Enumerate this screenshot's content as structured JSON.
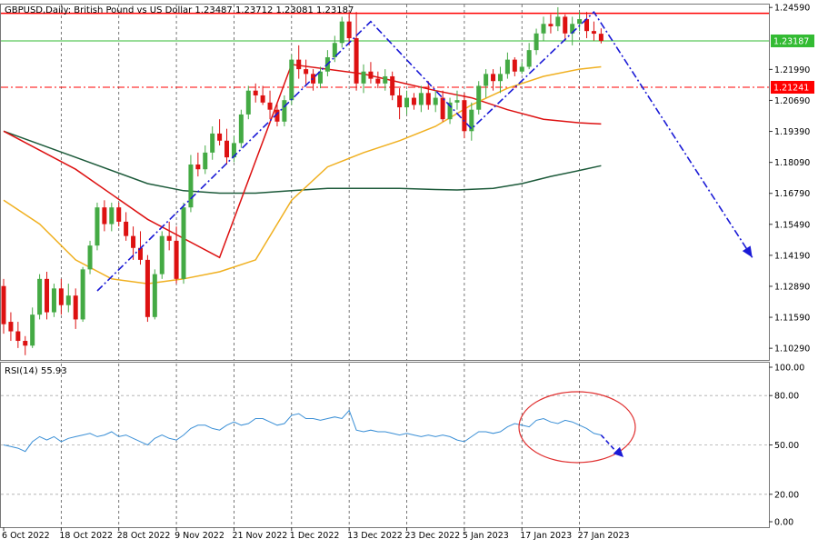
{
  "header": {
    "symbol_line": "GBPUSD,Daily:  British Pound vs US Dollar  1.23487 1.23712 1.23081 1.23187"
  },
  "colors": {
    "bull": "#44aa44",
    "bear": "#dd1111",
    "ma_red": "#dd1111",
    "ma_orange": "#f0b020",
    "ma_dark": "#1c5a3a",
    "pattern_line": "#1a1ad6",
    "hline_red": "#ff0000",
    "hline_green": "#33bb33",
    "rsi_line": "#3a8fd6",
    "circle": "#e03030",
    "grid": "#555555"
  },
  "chart_data": [
    {
      "type": "candlestick",
      "title": "GBPUSD,Daily:  British Pound vs US Dollar  1.23487 1.23712 1.23081 1.23187",
      "ylim": [
        1.098,
        1.2475
      ],
      "y_ticks": [
        "1.24590",
        "1.23187",
        "1.21990",
        "1.21241",
        "1.20690",
        "1.19390",
        "1.18090",
        "1.16790",
        "1.15490",
        "1.14190",
        "1.12890",
        "1.11590",
        "1.10290"
      ],
      "x_ticks": [
        "6 Oct 2022",
        "18 Oct 2022",
        "28 Oct 2022",
        "9 Nov 2022",
        "21 Nov 2022",
        "1 Dec 2022",
        "13 Dec 2022",
        "23 Dec 2022",
        "5 Jan 2023",
        "17 Jan 2023",
        "27 Jan 2023"
      ],
      "x_tick_bar_index": [
        0,
        8,
        16,
        24,
        32,
        40,
        48,
        56,
        64,
        72,
        80
      ],
      "candles": [
        {
          "o": 1.129,
          "h": 1.132,
          "l": 1.109,
          "c": 1.113
        },
        {
          "o": 1.114,
          "h": 1.118,
          "l": 1.106,
          "c": 1.11
        },
        {
          "o": 1.11,
          "h": 1.114,
          "l": 1.103,
          "c": 1.106
        },
        {
          "o": 1.106,
          "h": 1.108,
          "l": 1.1,
          "c": 1.104
        },
        {
          "o": 1.104,
          "h": 1.12,
          "l": 1.103,
          "c": 1.117
        },
        {
          "o": 1.117,
          "h": 1.134,
          "l": 1.115,
          "c": 1.132
        },
        {
          "o": 1.132,
          "h": 1.135,
          "l": 1.115,
          "c": 1.118
        },
        {
          "o": 1.118,
          "h": 1.13,
          "l": 1.116,
          "c": 1.128
        },
        {
          "o": 1.128,
          "h": 1.132,
          "l": 1.117,
          "c": 1.121
        },
        {
          "o": 1.121,
          "h": 1.13,
          "l": 1.118,
          "c": 1.125
        },
        {
          "o": 1.125,
          "h": 1.128,
          "l": 1.111,
          "c": 1.115
        },
        {
          "o": 1.115,
          "h": 1.137,
          "l": 1.114,
          "c": 1.136
        },
        {
          "o": 1.136,
          "h": 1.148,
          "l": 1.134,
          "c": 1.146
        },
        {
          "o": 1.146,
          "h": 1.164,
          "l": 1.144,
          "c": 1.162
        },
        {
          "o": 1.162,
          "h": 1.165,
          "l": 1.152,
          "c": 1.155
        },
        {
          "o": 1.155,
          "h": 1.164,
          "l": 1.152,
          "c": 1.162
        },
        {
          "o": 1.162,
          "h": 1.164,
          "l": 1.154,
          "c": 1.156
        },
        {
          "o": 1.156,
          "h": 1.16,
          "l": 1.148,
          "c": 1.15
        },
        {
          "o": 1.15,
          "h": 1.154,
          "l": 1.14,
          "c": 1.145
        },
        {
          "o": 1.145,
          "h": 1.152,
          "l": 1.138,
          "c": 1.14
        },
        {
          "o": 1.14,
          "h": 1.142,
          "l": 1.114,
          "c": 1.116
        },
        {
          "o": 1.116,
          "h": 1.136,
          "l": 1.115,
          "c": 1.134
        },
        {
          "o": 1.134,
          "h": 1.152,
          "l": 1.132,
          "c": 1.15
        },
        {
          "o": 1.15,
          "h": 1.156,
          "l": 1.144,
          "c": 1.148
        },
        {
          "o": 1.148,
          "h": 1.154,
          "l": 1.13,
          "c": 1.132
        },
        {
          "o": 1.132,
          "h": 1.164,
          "l": 1.13,
          "c": 1.162
        },
        {
          "o": 1.162,
          "h": 1.184,
          "l": 1.16,
          "c": 1.18
        },
        {
          "o": 1.18,
          "h": 1.185,
          "l": 1.175,
          "c": 1.178
        },
        {
          "o": 1.178,
          "h": 1.188,
          "l": 1.176,
          "c": 1.185
        },
        {
          "o": 1.185,
          "h": 1.196,
          "l": 1.182,
          "c": 1.193
        },
        {
          "o": 1.193,
          "h": 1.199,
          "l": 1.188,
          "c": 1.19
        },
        {
          "o": 1.19,
          "h": 1.195,
          "l": 1.18,
          "c": 1.183
        },
        {
          "o": 1.183,
          "h": 1.192,
          "l": 1.181,
          "c": 1.189
        },
        {
          "o": 1.189,
          "h": 1.203,
          "l": 1.187,
          "c": 1.201
        },
        {
          "o": 1.201,
          "h": 1.213,
          "l": 1.199,
          "c": 1.211
        },
        {
          "o": 1.211,
          "h": 1.214,
          "l": 1.206,
          "c": 1.209
        },
        {
          "o": 1.209,
          "h": 1.213,
          "l": 1.205,
          "c": 1.206
        },
        {
          "o": 1.206,
          "h": 1.211,
          "l": 1.199,
          "c": 1.203
        },
        {
          "o": 1.203,
          "h": 1.206,
          "l": 1.196,
          "c": 1.198
        },
        {
          "o": 1.198,
          "h": 1.209,
          "l": 1.196,
          "c": 1.207
        },
        {
          "o": 1.207,
          "h": 1.226,
          "l": 1.205,
          "c": 1.224
        },
        {
          "o": 1.224,
          "h": 1.23,
          "l": 1.216,
          "c": 1.22
        },
        {
          "o": 1.22,
          "h": 1.224,
          "l": 1.213,
          "c": 1.218
        },
        {
          "o": 1.218,
          "h": 1.22,
          "l": 1.211,
          "c": 1.214
        },
        {
          "o": 1.214,
          "h": 1.221,
          "l": 1.212,
          "c": 1.219
        },
        {
          "o": 1.219,
          "h": 1.228,
          "l": 1.217,
          "c": 1.225
        },
        {
          "o": 1.225,
          "h": 1.234,
          "l": 1.223,
          "c": 1.231
        },
        {
          "o": 1.231,
          "h": 1.242,
          "l": 1.229,
          "c": 1.24
        },
        {
          "o": 1.24,
          "h": 1.244,
          "l": 1.23,
          "c": 1.233
        },
        {
          "o": 1.233,
          "h": 1.244,
          "l": 1.211,
          "c": 1.214
        },
        {
          "o": 1.214,
          "h": 1.222,
          "l": 1.21,
          "c": 1.219
        },
        {
          "o": 1.219,
          "h": 1.223,
          "l": 1.214,
          "c": 1.216
        },
        {
          "o": 1.216,
          "h": 1.219,
          "l": 1.212,
          "c": 1.214
        },
        {
          "o": 1.214,
          "h": 1.22,
          "l": 1.211,
          "c": 1.217
        },
        {
          "o": 1.217,
          "h": 1.219,
          "l": 1.207,
          "c": 1.209
        },
        {
          "o": 1.209,
          "h": 1.212,
          "l": 1.199,
          "c": 1.204
        },
        {
          "o": 1.204,
          "h": 1.211,
          "l": 1.201,
          "c": 1.208
        },
        {
          "o": 1.208,
          "h": 1.21,
          "l": 1.203,
          "c": 1.205
        },
        {
          "o": 1.205,
          "h": 1.213,
          "l": 1.202,
          "c": 1.21
        },
        {
          "o": 1.21,
          "h": 1.215,
          "l": 1.203,
          "c": 1.205
        },
        {
          "o": 1.205,
          "h": 1.211,
          "l": 1.202,
          "c": 1.208
        },
        {
          "o": 1.208,
          "h": 1.211,
          "l": 1.198,
          "c": 1.199
        },
        {
          "o": 1.199,
          "h": 1.208,
          "l": 1.197,
          "c": 1.206
        },
        {
          "o": 1.206,
          "h": 1.211,
          "l": 1.203,
          "c": 1.207
        },
        {
          "o": 1.207,
          "h": 1.21,
          "l": 1.191,
          "c": 1.194
        },
        {
          "o": 1.194,
          "h": 1.206,
          "l": 1.19,
          "c": 1.203
        },
        {
          "o": 1.203,
          "h": 1.215,
          "l": 1.201,
          "c": 1.213
        },
        {
          "o": 1.213,
          "h": 1.22,
          "l": 1.208,
          "c": 1.218
        },
        {
          "o": 1.218,
          "h": 1.22,
          "l": 1.211,
          "c": 1.215
        },
        {
          "o": 1.215,
          "h": 1.221,
          "l": 1.21,
          "c": 1.218
        },
        {
          "o": 1.218,
          "h": 1.227,
          "l": 1.216,
          "c": 1.224
        },
        {
          "o": 1.224,
          "h": 1.225,
          "l": 1.217,
          "c": 1.219
        },
        {
          "o": 1.219,
          "h": 1.223,
          "l": 1.218,
          "c": 1.221
        },
        {
          "o": 1.221,
          "h": 1.231,
          "l": 1.22,
          "c": 1.228
        },
        {
          "o": 1.228,
          "h": 1.237,
          "l": 1.226,
          "c": 1.235
        },
        {
          "o": 1.235,
          "h": 1.242,
          "l": 1.232,
          "c": 1.239
        },
        {
          "o": 1.239,
          "h": 1.243,
          "l": 1.235,
          "c": 1.238
        },
        {
          "o": 1.238,
          "h": 1.246,
          "l": 1.236,
          "c": 1.242
        },
        {
          "o": 1.242,
          "h": 1.243,
          "l": 1.232,
          "c": 1.235
        },
        {
          "o": 1.235,
          "h": 1.242,
          "l": 1.23,
          "c": 1.239
        },
        {
          "o": 1.239,
          "h": 1.244,
          "l": 1.236,
          "c": 1.241
        },
        {
          "o": 1.241,
          "h": 1.244,
          "l": 1.233,
          "c": 1.236
        },
        {
          "o": 1.236,
          "h": 1.24,
          "l": 1.232,
          "c": 1.2349
        },
        {
          "o": 1.23487,
          "h": 1.23712,
          "l": 1.23081,
          "c": 1.23187
        }
      ],
      "ma_red": {
        "bar_index": [
          0,
          10,
          20,
          30,
          40,
          50,
          55,
          60,
          65,
          70,
          75,
          80,
          83
        ],
        "values": [
          1.194,
          1.178,
          1.157,
          1.141,
          1.222,
          1.218,
          1.2145,
          1.211,
          1.208,
          1.203,
          1.199,
          1.1975,
          1.197
        ]
      },
      "ma_orange": {
        "bar_index": [
          0,
          5,
          10,
          15,
          20,
          25,
          30,
          35,
          40,
          45,
          50,
          55,
          60,
          65,
          70,
          75,
          80,
          83
        ],
        "values": [
          1.165,
          1.155,
          1.14,
          1.132,
          1.13,
          1.132,
          1.135,
          1.14,
          1.165,
          1.179,
          1.185,
          1.19,
          1.196,
          1.205,
          1.212,
          1.217,
          1.22,
          1.221
        ]
      },
      "ma_dark": {
        "bar_index": [
          0,
          10,
          20,
          25,
          30,
          35,
          40,
          45,
          50,
          55,
          60,
          63,
          68,
          72,
          76,
          80,
          83
        ],
        "values": [
          1.194,
          1.183,
          1.172,
          1.169,
          1.168,
          1.168,
          1.169,
          1.17,
          1.17,
          1.17,
          1.1695,
          1.1693,
          1.17,
          1.172,
          1.175,
          1.1775,
          1.1795
        ]
      },
      "hlines": [
        {
          "value": 1.24345,
          "label": "1.24345",
          "style": "solid",
          "color": "hline_red"
        },
        {
          "value": 1.23187,
          "label": "1.23187",
          "style": "solid",
          "color": "hline_green"
        },
        {
          "value": 1.21241,
          "label": "1.21241",
          "style": "dashdot",
          "color": "hline_red"
        }
      ],
      "pattern_path": {
        "bar_index": [
          13,
          51,
          65,
          82,
          104
        ],
        "values": [
          1.127,
          1.24,
          1.195,
          1.244,
          1.141
        ]
      }
    },
    {
      "type": "line",
      "title": "RSI(14) 55.93",
      "ylim": [
        0,
        100
      ],
      "y_ticks": [
        "100.00",
        "80.00",
        "50.00",
        "20.00",
        "0.00"
      ],
      "levels": [
        80,
        50,
        20
      ],
      "values": [
        50,
        49,
        48,
        46,
        52,
        55,
        53,
        55,
        52,
        54,
        55,
        56,
        57,
        55,
        56,
        58,
        55,
        56,
        54,
        52,
        50,
        54,
        56,
        54,
        53,
        56,
        60,
        62,
        62,
        60,
        59,
        62,
        64,
        62,
        63,
        66,
        66,
        64,
        62,
        63,
        68,
        69,
        66,
        66,
        65,
        66,
        67,
        66,
        71,
        59,
        58,
        59,
        58,
        58,
        57,
        56,
        57,
        56,
        55,
        56,
        55,
        56,
        55,
        53,
        52,
        55,
        58,
        58,
        57,
        58,
        61,
        63,
        62,
        61,
        65,
        66,
        64,
        63,
        65,
        64,
        62,
        60,
        57,
        56
      ]
    }
  ]
}
